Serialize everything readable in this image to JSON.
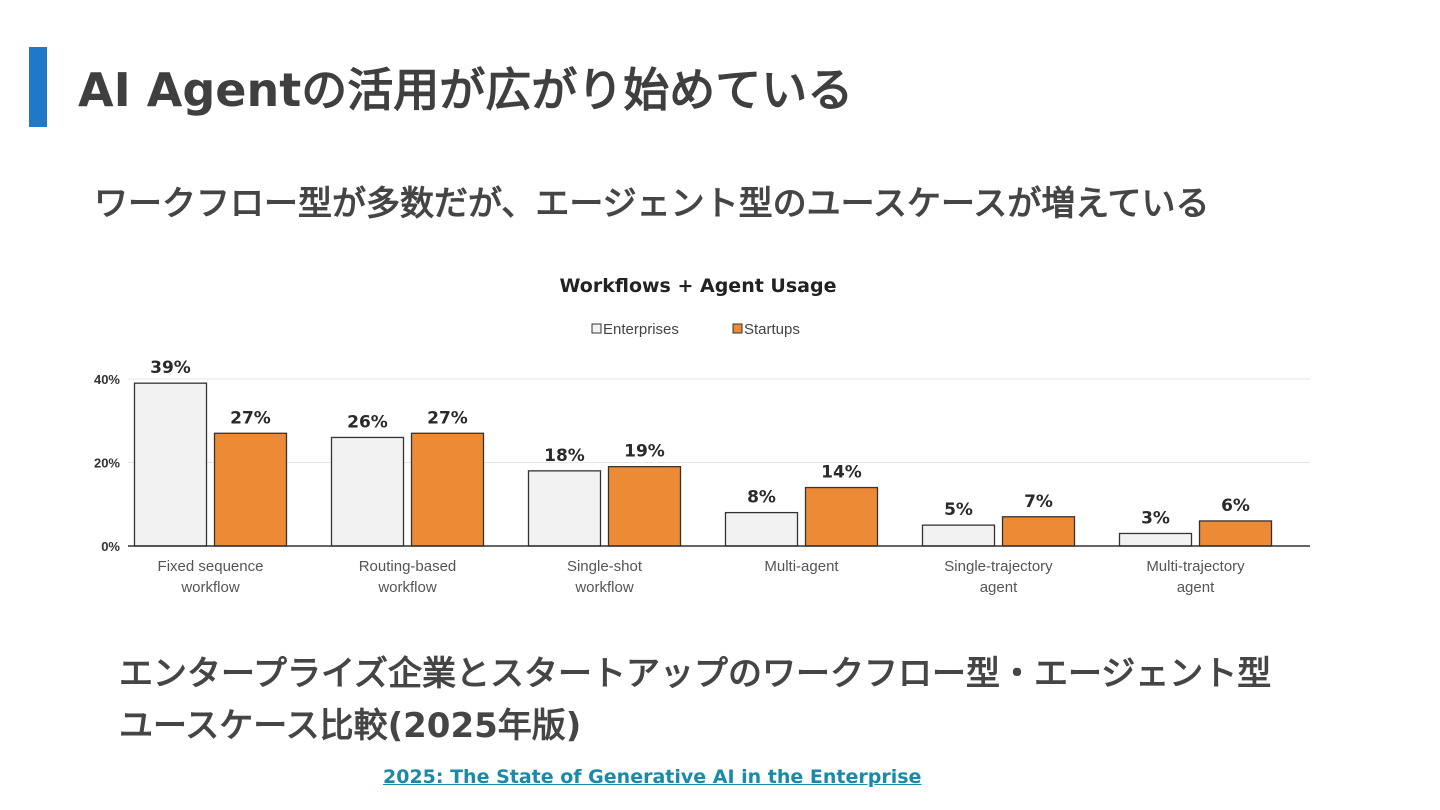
{
  "slide": {
    "title": "AI Agentの活用が広がり始めている",
    "subtitle": "ワークフロー型が多数だが、エージェント型のユースケースが増えている",
    "caption_lines": [
      "エンタープライズ企業とスタートアップのワークフロー型・エージェント型",
      "ユースケース比較(2025年版)"
    ],
    "source_link": "2025: The State of Generative AI in the Enterprise",
    "accent_color": "#1f78c8"
  },
  "chart_data": {
    "type": "bar",
    "title": "Workflows + Agent Usage",
    "categories": [
      [
        "Fixed sequence",
        "workflow"
      ],
      [
        "Routing-based",
        "workflow"
      ],
      [
        "Single-shot",
        "workflow"
      ],
      [
        "Multi-agent"
      ],
      [
        "Single-trajectory",
        "agent"
      ],
      [
        "Multi-trajectory",
        "agent"
      ]
    ],
    "series": [
      {
        "name": "Enterprises",
        "values": [
          39,
          26,
          18,
          8,
          5,
          3
        ],
        "labels": [
          "39%",
          "26%",
          "18%",
          "8%",
          "5%",
          "3%"
        ],
        "color": "#f2f2f2"
      },
      {
        "name": "Startups",
        "values": [
          27,
          27,
          19,
          14,
          7,
          6
        ],
        "labels": [
          "27%",
          "27%",
          "19%",
          "14%",
          "7%",
          "6%"
        ],
        "color": "#ec8a36"
      }
    ],
    "yticks": [
      0,
      20,
      40
    ],
    "ytick_labels": [
      "0%",
      "20%",
      "40%"
    ],
    "ylim": [
      0,
      40
    ],
    "grid": true,
    "legend_position": "top-center",
    "xlabel": "",
    "ylabel": ""
  }
}
